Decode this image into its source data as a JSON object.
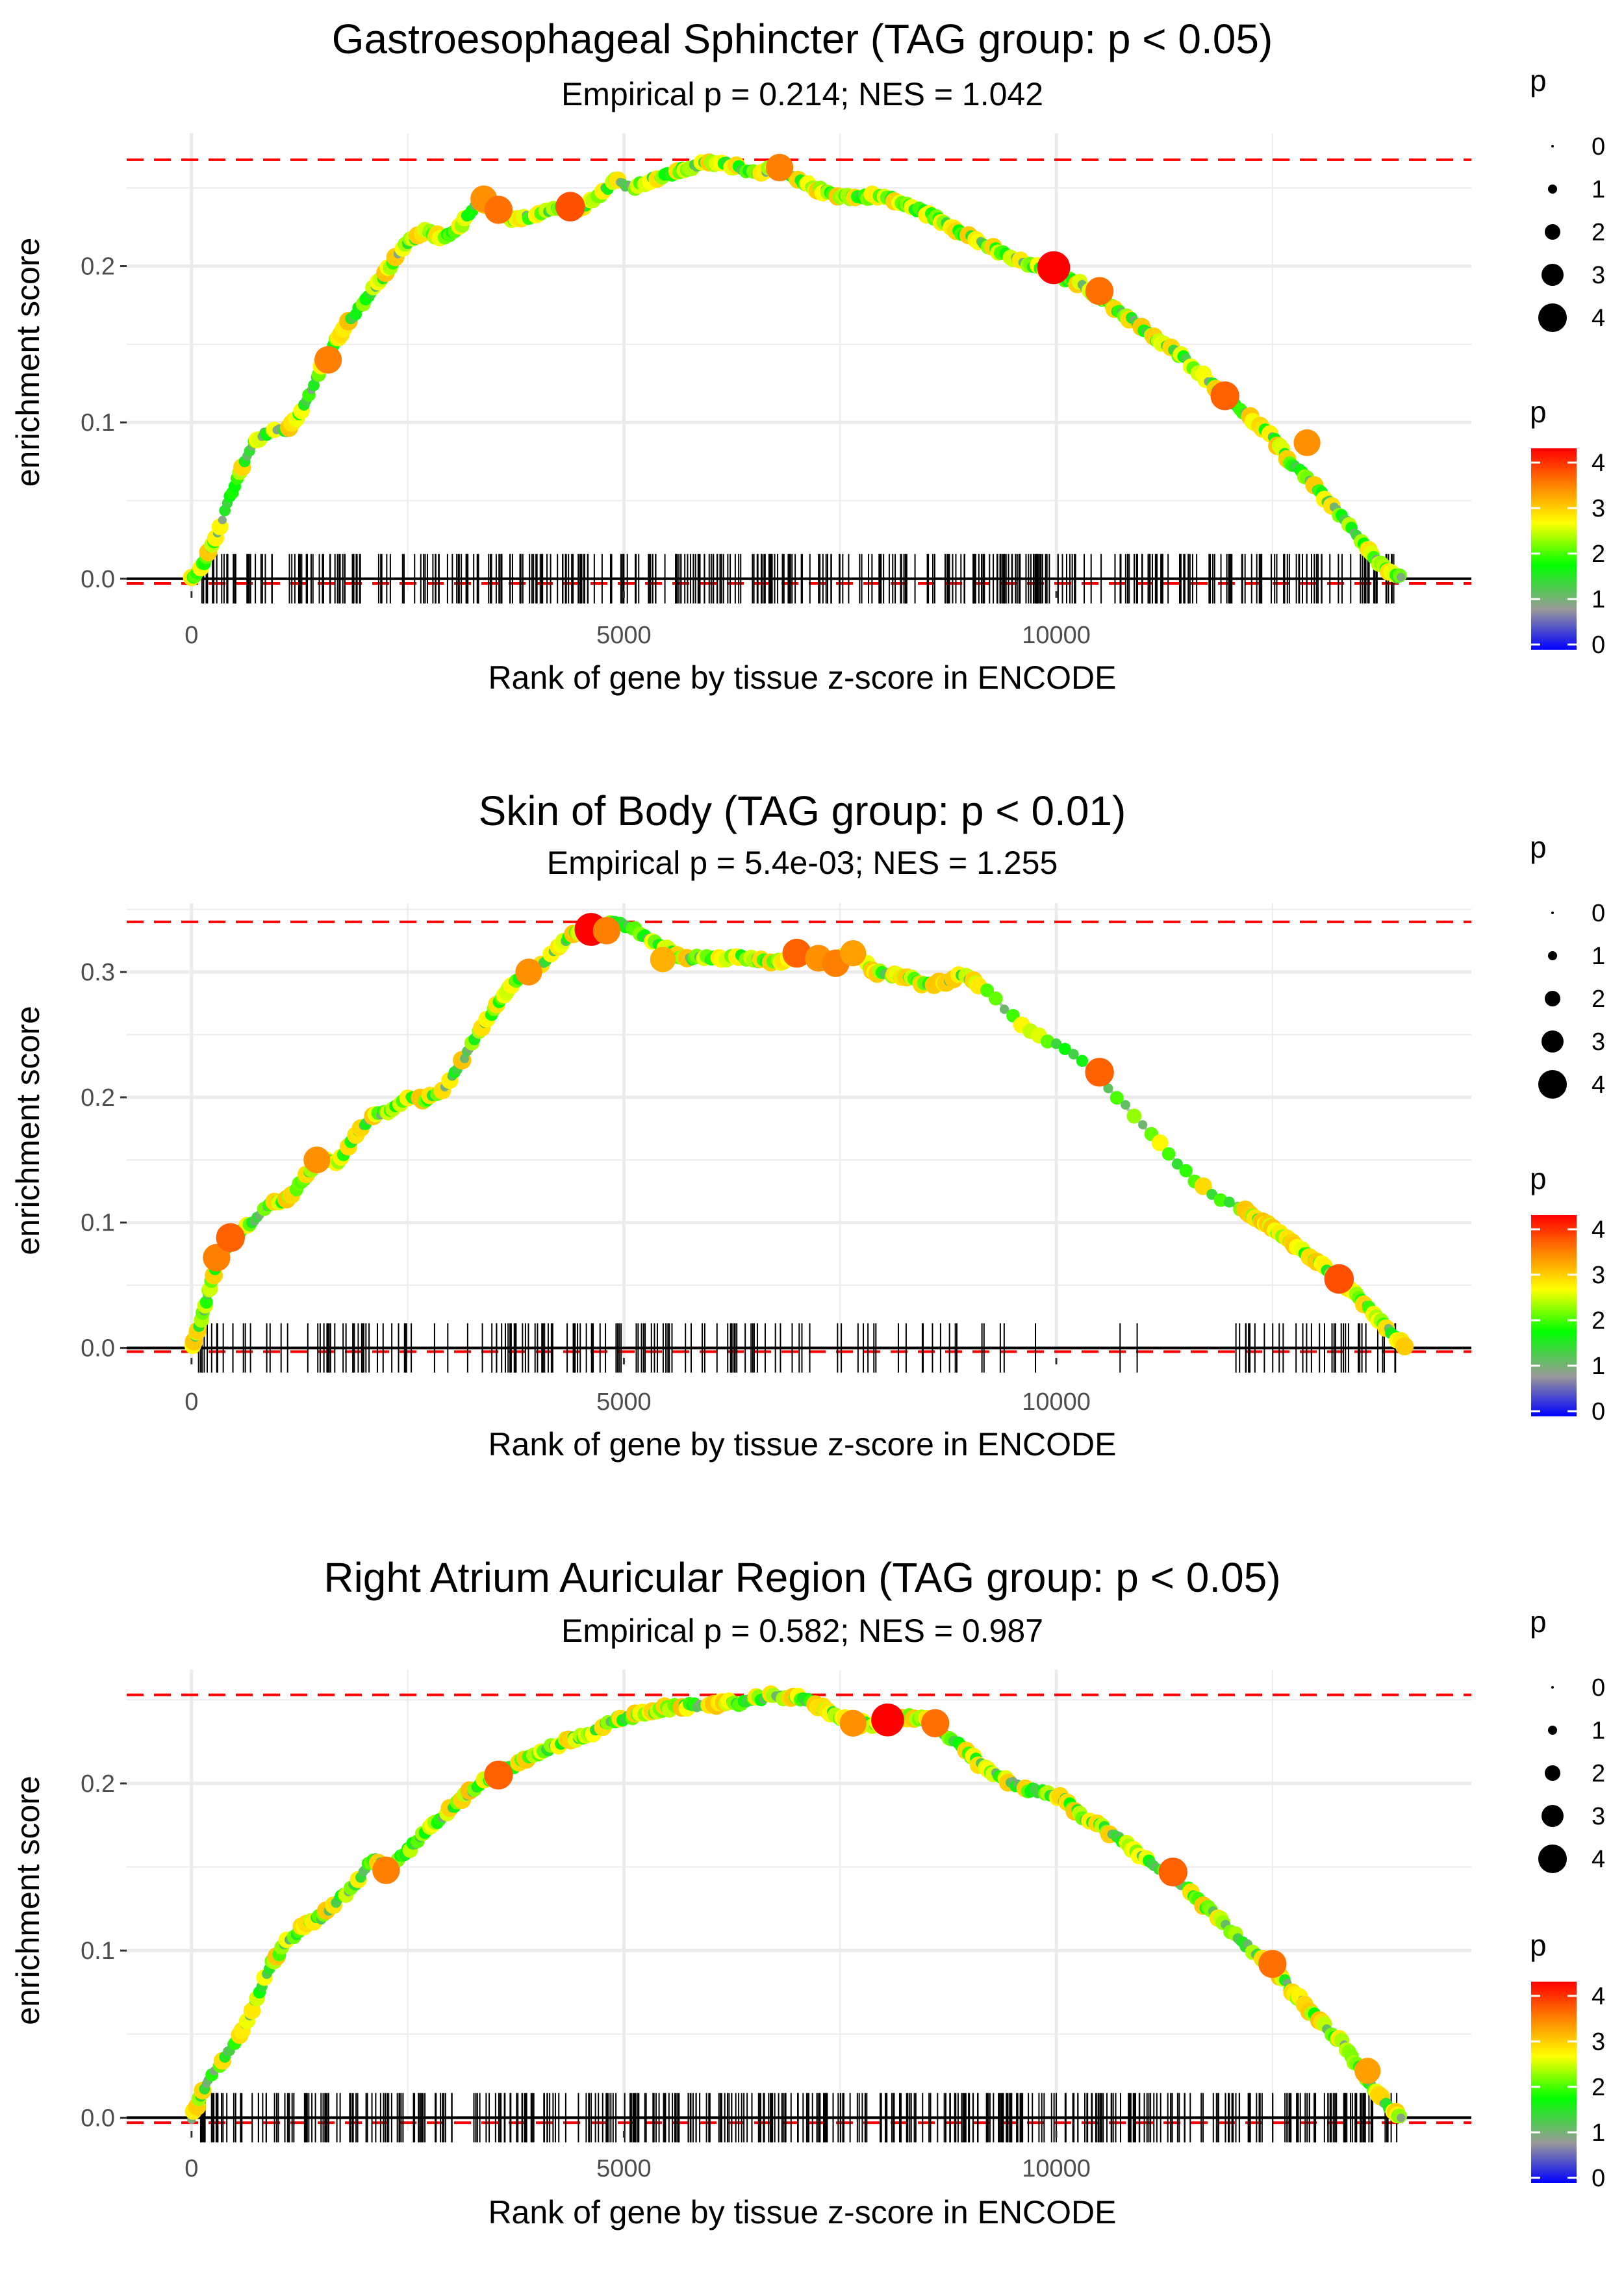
{
  "chart_data": [
    {
      "type": "line",
      "title": "Gastroesophageal Sphincter (TAG group: p < 0.05)",
      "subtitle": "Empirical p = 0.214; NES = 1.042",
      "xlabel": "Rank of gene by tissue z-score in ENCODE",
      "ylabel": "enrichment score",
      "xlim": [
        -750,
        14800
      ],
      "ylim": [
        -0.008,
        0.285
      ],
      "xticks": [
        0,
        5000,
        10000
      ],
      "xtick_labels": [
        "0",
        "5000",
        "10000"
      ],
      "yticks": [
        0.0,
        0.1,
        0.2
      ],
      "ytick_labels": [
        "0.0",
        "0.1",
        "0.2"
      ],
      "max_es": 0.268,
      "grid": true,
      "series": [
        {
          "name": "running enrichment score",
          "x": [
            0,
            150,
            300,
            500,
            700,
            900,
            1100,
            1300,
            1500,
            1700,
            1900,
            2100,
            2300,
            2500,
            2700,
            2900,
            3100,
            3300,
            3500,
            3700,
            3900,
            4100,
            4300,
            4500,
            4700,
            4900,
            5100,
            5300,
            5500,
            5700,
            5900,
            6100,
            6300,
            6500,
            6700,
            6900,
            7100,
            7300,
            7500,
            7700,
            7900,
            8100,
            8300,
            8500,
            8700,
            8900,
            9100,
            9300,
            9500,
            9700,
            9900,
            10100,
            10300,
            10500,
            10700,
            10900,
            11100,
            11300,
            11500,
            11700,
            11900,
            12100,
            12300,
            12500,
            12700,
            12900,
            13100,
            13300,
            13500,
            13700,
            13900,
            14000
          ],
          "y": [
            0.0,
            0.01,
            0.03,
            0.06,
            0.085,
            0.095,
            0.095,
            0.11,
            0.135,
            0.155,
            0.17,
            0.185,
            0.2,
            0.215,
            0.222,
            0.218,
            0.225,
            0.24,
            0.238,
            0.228,
            0.232,
            0.236,
            0.238,
            0.238,
            0.245,
            0.255,
            0.25,
            0.255,
            0.258,
            0.262,
            0.265,
            0.266,
            0.264,
            0.26,
            0.262,
            0.258,
            0.252,
            0.248,
            0.245,
            0.244,
            0.245,
            0.243,
            0.238,
            0.234,
            0.228,
            0.222,
            0.216,
            0.21,
            0.205,
            0.2,
            0.198,
            0.192,
            0.188,
            0.18,
            0.172,
            0.165,
            0.155,
            0.148,
            0.14,
            0.13,
            0.12,
            0.11,
            0.1,
            0.09,
            0.075,
            0.065,
            0.052,
            0.04,
            0.025,
            0.012,
            0.002,
            0.0
          ]
        }
      ],
      "highlights": [
        {
          "x": 1580,
          "y": 0.14,
          "p": 3.3
        },
        {
          "x": 3380,
          "y": 0.243,
          "p": 3.2
        },
        {
          "x": 3550,
          "y": 0.236,
          "p": 3.4
        },
        {
          "x": 4380,
          "y": 0.238,
          "p": 3.6
        },
        {
          "x": 6800,
          "y": 0.263,
          "p": 3.3
        },
        {
          "x": 9970,
          "y": 0.199,
          "p": 4.1
        },
        {
          "x": 10500,
          "y": 0.184,
          "p": 3.4
        },
        {
          "x": 11950,
          "y": 0.117,
          "p": 3.5
        },
        {
          "x": 12900,
          "y": 0.087,
          "p": 3.2
        }
      ],
      "rug_count": 420,
      "rug_gap": null
    },
    {
      "type": "line",
      "title": "Skin of Body (TAG group: p < 0.01)",
      "subtitle": "Empirical p = 5.4e-03; NES = 1.255",
      "xlabel": "Rank of gene by tissue z-score in ENCODE",
      "ylabel": "enrichment score",
      "xlim": [
        -750,
        14800
      ],
      "ylim": [
        -0.008,
        0.355
      ],
      "xticks": [
        0,
        5000,
        10000
      ],
      "xtick_labels": [
        "0",
        "5000",
        "10000"
      ],
      "yticks": [
        0.0,
        0.1,
        0.2,
        0.3
      ],
      "ytick_labels": [
        "0.0",
        "0.1",
        "0.2",
        "0.3"
      ],
      "max_es": 0.34,
      "grid": true,
      "series": [
        {
          "name": "running enrichment score",
          "x": [
            0,
            100,
            200,
            300,
            500,
            700,
            900,
            1100,
            1300,
            1500,
            1700,
            1900,
            2100,
            2300,
            2500,
            2700,
            2900,
            3100,
            3300,
            3500,
            3700,
            3900,
            4100,
            4300,
            4500,
            4700,
            4900,
            5100,
            5300,
            5500,
            5700,
            5900,
            6100,
            6300,
            6500,
            6700,
            6900,
            7100,
            7300,
            7500,
            7700,
            7900,
            8100,
            8300,
            8500,
            8700,
            8900,
            9100,
            9300,
            9500,
            9700,
            9900,
            10100,
            10300,
            10500,
            10700,
            10900,
            11100,
            11300,
            11500,
            11700,
            11900,
            12100,
            12300,
            12500,
            12700,
            12900,
            13100,
            13300,
            13500,
            13700,
            13900,
            14050
          ],
          "y": [
            0.0,
            0.02,
            0.045,
            0.07,
            0.09,
            0.1,
            0.115,
            0.118,
            0.135,
            0.15,
            0.148,
            0.17,
            0.185,
            0.19,
            0.2,
            0.198,
            0.205,
            0.225,
            0.25,
            0.27,
            0.29,
            0.3,
            0.31,
            0.325,
            0.333,
            0.333,
            0.34,
            0.335,
            0.325,
            0.318,
            0.31,
            0.312,
            0.31,
            0.313,
            0.31,
            0.307,
            0.31,
            0.314,
            0.308,
            0.313,
            0.315,
            0.3,
            0.298,
            0.295,
            0.29,
            0.292,
            0.298,
            0.29,
            0.278,
            0.265,
            0.252,
            0.245,
            0.238,
            0.228,
            0.215,
            0.2,
            0.185,
            0.17,
            0.155,
            0.14,
            0.128,
            0.118,
            0.112,
            0.105,
            0.095,
            0.085,
            0.075,
            0.065,
            0.052,
            0.04,
            0.025,
            0.01,
            0.0
          ]
        }
      ],
      "highlights": [
        {
          "x": 290,
          "y": 0.072,
          "p": 3.3
        },
        {
          "x": 450,
          "y": 0.088,
          "p": 3.5
        },
        {
          "x": 1450,
          "y": 0.15,
          "p": 3.2
        },
        {
          "x": 3900,
          "y": 0.3,
          "p": 3.2
        },
        {
          "x": 4620,
          "y": 0.334,
          "p": 4.1
        },
        {
          "x": 4800,
          "y": 0.333,
          "p": 3.3
        },
        {
          "x": 5450,
          "y": 0.31,
          "p": 3.0
        },
        {
          "x": 7000,
          "y": 0.315,
          "p": 3.5
        },
        {
          "x": 7250,
          "y": 0.311,
          "p": 3.2
        },
        {
          "x": 7450,
          "y": 0.307,
          "p": 3.3
        },
        {
          "x": 7650,
          "y": 0.315,
          "p": 3.1
        },
        {
          "x": 10500,
          "y": 0.22,
          "p": 3.5
        },
        {
          "x": 13270,
          "y": 0.055,
          "p": 3.6
        }
      ],
      "rug_count": 230,
      "rug_gap": [
        8900,
        12100
      ]
    },
    {
      "type": "line",
      "title": "Right Atrium Auricular Region (TAG group: p < 0.05)",
      "subtitle": "Empirical p = 0.582; NES = 0.987",
      "xlabel": "Rank of gene by tissue z-score in ENCODE",
      "ylabel": "enrichment score",
      "xlim": [
        -750,
        14800
      ],
      "ylim": [
        -0.008,
        0.268
      ],
      "xticks": [
        0,
        5000,
        10000
      ],
      "xtick_labels": [
        "0",
        "5000",
        "10000"
      ],
      "yticks": [
        0.0,
        0.1,
        0.2
      ],
      "ytick_labels": [
        "0.0",
        "0.1",
        "0.2"
      ],
      "max_es": 0.253,
      "grid": true,
      "series": [
        {
          "name": "running enrichment score",
          "x": [
            0,
            150,
            300,
            500,
            700,
            900,
            1100,
            1300,
            1500,
            1700,
            1900,
            2100,
            2300,
            2500,
            2700,
            2900,
            3100,
            3300,
            3500,
            3700,
            3900,
            4100,
            4300,
            4500,
            4700,
            4900,
            5100,
            5300,
            5500,
            5700,
            5900,
            6100,
            6300,
            6500,
            6700,
            6900,
            7100,
            7300,
            7500,
            7700,
            7900,
            8100,
            8300,
            8500,
            8700,
            8900,
            9100,
            9300,
            9500,
            9700,
            9900,
            10100,
            10300,
            10500,
            10700,
            10900,
            11100,
            11300,
            11500,
            11700,
            11900,
            12100,
            12300,
            12500,
            12700,
            12900,
            13100,
            13300,
            13500,
            13700,
            13900,
            14000
          ],
          "y": [
            0.0,
            0.018,
            0.03,
            0.045,
            0.065,
            0.09,
            0.105,
            0.115,
            0.12,
            0.13,
            0.14,
            0.155,
            0.15,
            0.16,
            0.17,
            0.18,
            0.19,
            0.198,
            0.205,
            0.21,
            0.215,
            0.22,
            0.225,
            0.228,
            0.232,
            0.238,
            0.24,
            0.243,
            0.245,
            0.246,
            0.247,
            0.248,
            0.248,
            0.25,
            0.252,
            0.252,
            0.25,
            0.245,
            0.24,
            0.236,
            0.235,
            0.238,
            0.24,
            0.238,
            0.23,
            0.222,
            0.212,
            0.205,
            0.2,
            0.196,
            0.194,
            0.19,
            0.18,
            0.175,
            0.168,
            0.16,
            0.152,
            0.145,
            0.138,
            0.128,
            0.118,
            0.108,
            0.098,
            0.09,
            0.078,
            0.066,
            0.055,
            0.045,
            0.03,
            0.015,
            0.003,
            0.0
          ]
        }
      ],
      "highlights": [
        {
          "x": 2250,
          "y": 0.148,
          "p": 3.3
        },
        {
          "x": 3550,
          "y": 0.205,
          "p": 3.5
        },
        {
          "x": 7650,
          "y": 0.236,
          "p": 3.2
        },
        {
          "x": 8050,
          "y": 0.238,
          "p": 4.1
        },
        {
          "x": 8600,
          "y": 0.236,
          "p": 3.4
        },
        {
          "x": 11350,
          "y": 0.147,
          "p": 3.5
        },
        {
          "x": 12500,
          "y": 0.092,
          "p": 3.4
        },
        {
          "x": 13600,
          "y": 0.028,
          "p": 3.1
        }
      ],
      "rug_count": 460,
      "rug_gap": null
    }
  ],
  "legend_size": {
    "title": "p",
    "entries": [
      "0",
      "1",
      "2",
      "3",
      "4"
    ]
  },
  "legend_color": {
    "title": "p",
    "ticks": [
      "0",
      "1",
      "2",
      "3",
      "4"
    ]
  },
  "colors": {
    "cut_line": "#ff0000",
    "curve": "#bdbdbd",
    "grid": "#ebebeb",
    "rug": "#000000",
    "gradient": [
      "#0000ff",
      "#999999",
      "#00ff00",
      "#ffff00",
      "#ff8000",
      "#ff0000"
    ]
  }
}
